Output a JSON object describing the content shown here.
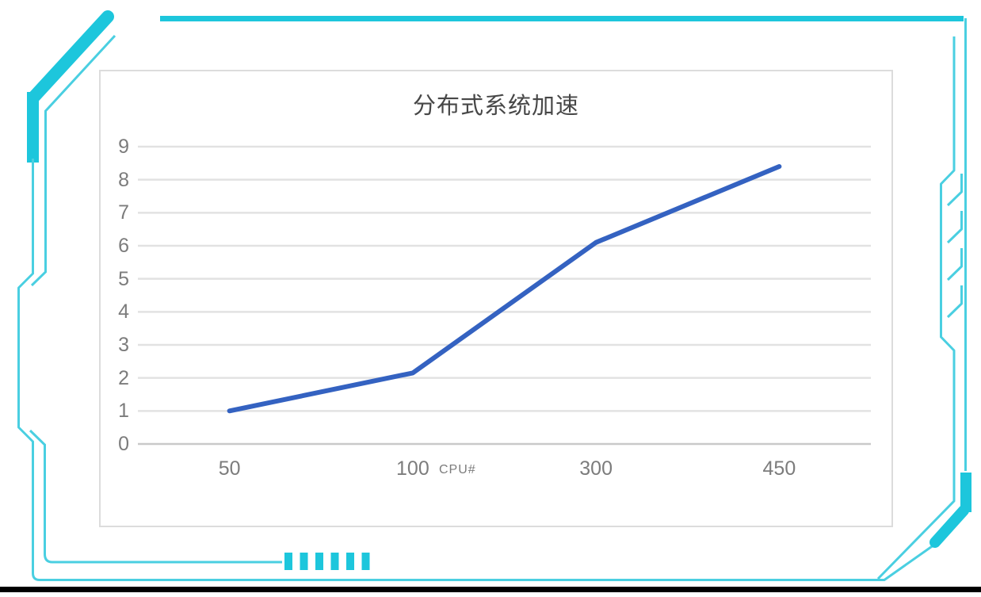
{
  "theme": {
    "accent": "#1DC6DC",
    "accent_light": "#4ACFE1",
    "bottom_bar_color": "#000000"
  },
  "chart_data": {
    "type": "line",
    "title": "分布式系统加速",
    "xlabel": "CPU#",
    "ylabel": "",
    "categories": [
      "50",
      "100",
      "300",
      "450"
    ],
    "series": [
      {
        "values": [
          1,
          2.15,
          6.1,
          8.4
        ]
      }
    ],
    "ylim": [
      0,
      9
    ],
    "ytick_step": 1,
    "grid": true,
    "legend": false,
    "line_color": "#3462C1",
    "grid_color": "#E2E2E2",
    "zero_line_color": "#C9C9C9",
    "tick_label_color": "#7C7C7C",
    "title_color": "#474747",
    "card_border_color": "#DCDCDC"
  }
}
